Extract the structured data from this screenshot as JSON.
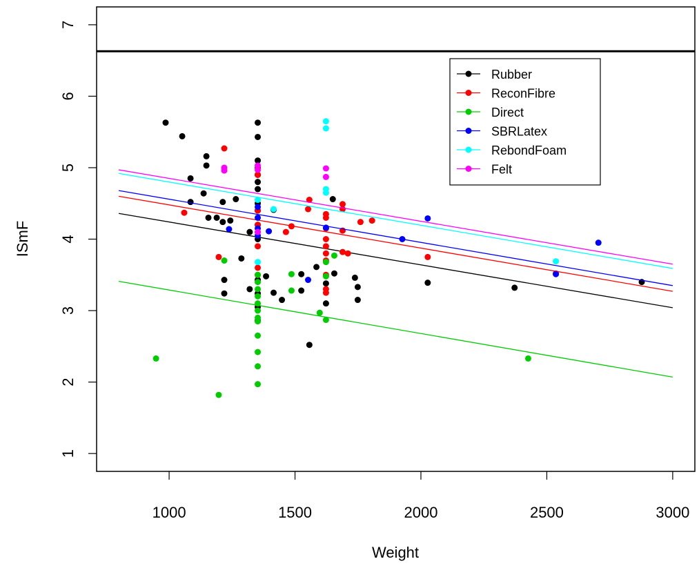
{
  "chart_data": {
    "type": "scatter",
    "xlabel": "Weight",
    "ylabel": "ISmF",
    "xlim": [
      712,
      3088
    ],
    "ylim": [
      0.75,
      7.25
    ],
    "xticks": [
      1000,
      1500,
      2000,
      2500,
      3000
    ],
    "yticks": [
      1,
      2,
      3,
      4,
      5,
      6,
      7
    ],
    "hline": 6.63,
    "fit_x": [
      800,
      3000
    ],
    "legend": "top right",
    "series": [
      {
        "name": "Rubber",
        "color": "#000000",
        "x": [
          986,
          1052,
          1148,
          1148,
          1085,
          1085,
          1137,
          1156,
          1189,
          1213,
          1213,
          1243,
          1265,
          1287,
          1320,
          1219,
          1219,
          1320,
          1352,
          1352,
          1352,
          1352,
          1352,
          1352,
          1352,
          1352,
          1352,
          1352,
          1352,
          1352,
          1352,
          1352,
          1352,
          1385,
          1415,
          1415,
          1448,
          1525,
          1525,
          1557,
          1585,
          1623,
          1623,
          1650,
          1656,
          1738,
          1749,
          1749,
          2027,
          2372,
          2877
        ],
        "values": [
          5.63,
          5.44,
          5.16,
          5.03,
          4.85,
          4.52,
          4.64,
          4.3,
          4.3,
          4.52,
          4.24,
          4.26,
          4.56,
          3.73,
          4.1,
          3.43,
          3.24,
          3.3,
          5.63,
          5.43,
          5.1,
          5.0,
          4.9,
          4.8,
          4.7,
          4.5,
          4.4,
          4.2,
          4.0,
          3.43,
          3.24,
          3.05,
          2.86,
          3.48,
          4.41,
          3.25,
          3.15,
          3.51,
          3.28,
          2.52,
          3.61,
          3.38,
          3.1,
          4.56,
          3.52,
          3.46,
          3.33,
          3.15,
          3.39,
          3.32,
          3.4
        ],
        "fit": [
          4.36,
          3.04
        ]
      },
      {
        "name": "ReconFibre",
        "color": "#ff0000",
        "x": [
          1219,
          1060,
          1197,
          1352,
          1352,
          1352,
          1352,
          1352,
          1352,
          1352,
          1464,
          1486,
          1557,
          1552,
          1623,
          1623,
          1623,
          1623,
          1623,
          1623,
          1623,
          1623,
          1623,
          1623,
          1689,
          1689,
          1689,
          1689,
          1710,
          1760,
          1806,
          2027,
          2536
        ],
        "values": [
          5.27,
          4.37,
          3.75,
          5.0,
          4.9,
          4.4,
          4.2,
          3.9,
          3.6,
          3.5,
          4.1,
          4.18,
          4.55,
          4.42,
          4.35,
          4.3,
          4.15,
          4.0,
          3.9,
          3.8,
          3.7,
          3.5,
          3.3,
          3.25,
          4.49,
          4.42,
          4.12,
          3.82,
          3.8,
          4.24,
          4.26,
          3.75,
          3.52
        ],
        "fit": [
          4.6,
          3.27
        ]
      },
      {
        "name": "Direct",
        "color": "#00cc00",
        "x": [
          948,
          1197,
          1219,
          1352,
          1352,
          1352,
          1352,
          1352,
          1352,
          1352,
          1352,
          1352,
          1352,
          1352,
          1352,
          1486,
          1486,
          1598,
          1623,
          1623,
          1623,
          1656,
          2426
        ],
        "values": [
          2.33,
          1.82,
          3.7,
          3.5,
          3.4,
          3.3,
          3.2,
          3.1,
          3.0,
          2.9,
          2.85,
          2.65,
          2.42,
          2.22,
          1.97,
          3.51,
          3.28,
          2.97,
          3.68,
          3.48,
          2.87,
          3.77,
          2.33
        ],
        "fit": [
          3.41,
          2.07
        ]
      },
      {
        "name": "SBRLatex",
        "color": "#0000ff",
        "x": [
          1238,
          1352,
          1352,
          1352,
          1352,
          1396,
          1552,
          1623,
          1926,
          2027,
          2536,
          2705
        ],
        "values": [
          4.14,
          4.45,
          4.3,
          4.15,
          4.05,
          4.11,
          3.43,
          4.16,
          4.0,
          4.29,
          3.51,
          3.95
        ],
        "fit": [
          4.68,
          3.35
        ]
      },
      {
        "name": "RebondFoam",
        "color": "#00ffff",
        "x": [
          1352,
          1352,
          1352,
          1415,
          1623,
          1623,
          1623,
          1623,
          2536
        ],
        "values": [
          4.55,
          4.1,
          3.68,
          4.42,
          5.65,
          5.55,
          4.7,
          4.65,
          3.69
        ],
        "fit": [
          4.92,
          3.59
        ]
      },
      {
        "name": "Felt",
        "color": "#ff00ff",
        "x": [
          1219,
          1219,
          1352,
          1352,
          1352,
          1623,
          1623
        ],
        "values": [
          5.0,
          4.96,
          5.03,
          4.97,
          4.1,
          4.99,
          4.87
        ],
        "fit": [
          4.97,
          3.65
        ]
      }
    ]
  }
}
